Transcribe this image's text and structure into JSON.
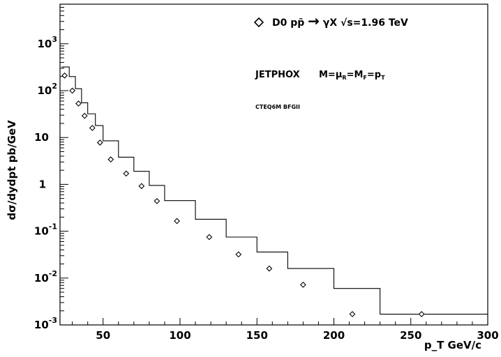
{
  "chart_data": {
    "type": "line",
    "xlabel": "p_T GeV/c",
    "ylabel": "dσ/dydpt pb/GeV",
    "xlim": [
      22,
      300
    ],
    "ylim": [
      0.001,
      7000
    ],
    "yscale": "log",
    "grid": false,
    "legend_position": "top-right",
    "x_ticks": [
      50,
      100,
      150,
      200,
      250,
      300
    ],
    "x_tick_labels": [
      "50",
      "100",
      "150",
      "200",
      "250",
      "300"
    ],
    "y_ticks": [
      0.001,
      0.01,
      0.1,
      1,
      10,
      100,
      1000
    ],
    "y_tick_labels": [
      {
        "base": "10",
        "exp": "-3"
      },
      {
        "base": "10",
        "exp": "-2"
      },
      {
        "base": "10",
        "exp": "-1"
      },
      {
        "base": "1",
        "exp": ""
      },
      {
        "base": "10",
        "exp": ""
      },
      {
        "base": "10",
        "exp": "2"
      },
      {
        "base": "10",
        "exp": "3"
      }
    ],
    "series": [
      {
        "name": "JETPHOX",
        "kind": "histogram",
        "bin_edges": [
          23,
          28,
          32,
          36,
          40,
          45,
          50,
          60,
          70,
          80,
          90,
          110,
          130,
          150,
          170,
          200,
          230,
          300
        ],
        "values": [
          320,
          200,
          110,
          55,
          32,
          18,
          8.5,
          3.8,
          1.9,
          0.95,
          0.45,
          0.18,
          0.075,
          0.036,
          0.016,
          0.006,
          0.0017
        ]
      },
      {
        "name": "D0 pp̄→γX √s=1.96 TeV",
        "kind": "points",
        "marker": "diamond",
        "x": [
          25,
          30,
          34,
          38,
          43,
          48,
          55,
          65,
          75,
          85,
          98,
          119,
          138,
          158,
          180,
          212,
          257
        ],
        "y": [
          210,
          100,
          53,
          29,
          16,
          7.8,
          3.4,
          1.7,
          0.92,
          0.44,
          0.165,
          0.075,
          0.032,
          0.016,
          0.0072,
          0.0017,
          0.0017
        ]
      }
    ],
    "legend": {
      "label_main": "D0 pp̄",
      "label_arrow": "→",
      "label_rest": "γX √s=1.96 TeV"
    },
    "annotations": {
      "model": "JETPHOX",
      "scales": "M=μ",
      "scales_sub1": "R",
      "scales_mid": "=M",
      "scales_sub2": "F",
      "scales_end": "=p",
      "scales_sub3": "T",
      "pdf": "CTEQ6M  BFGII"
    }
  }
}
